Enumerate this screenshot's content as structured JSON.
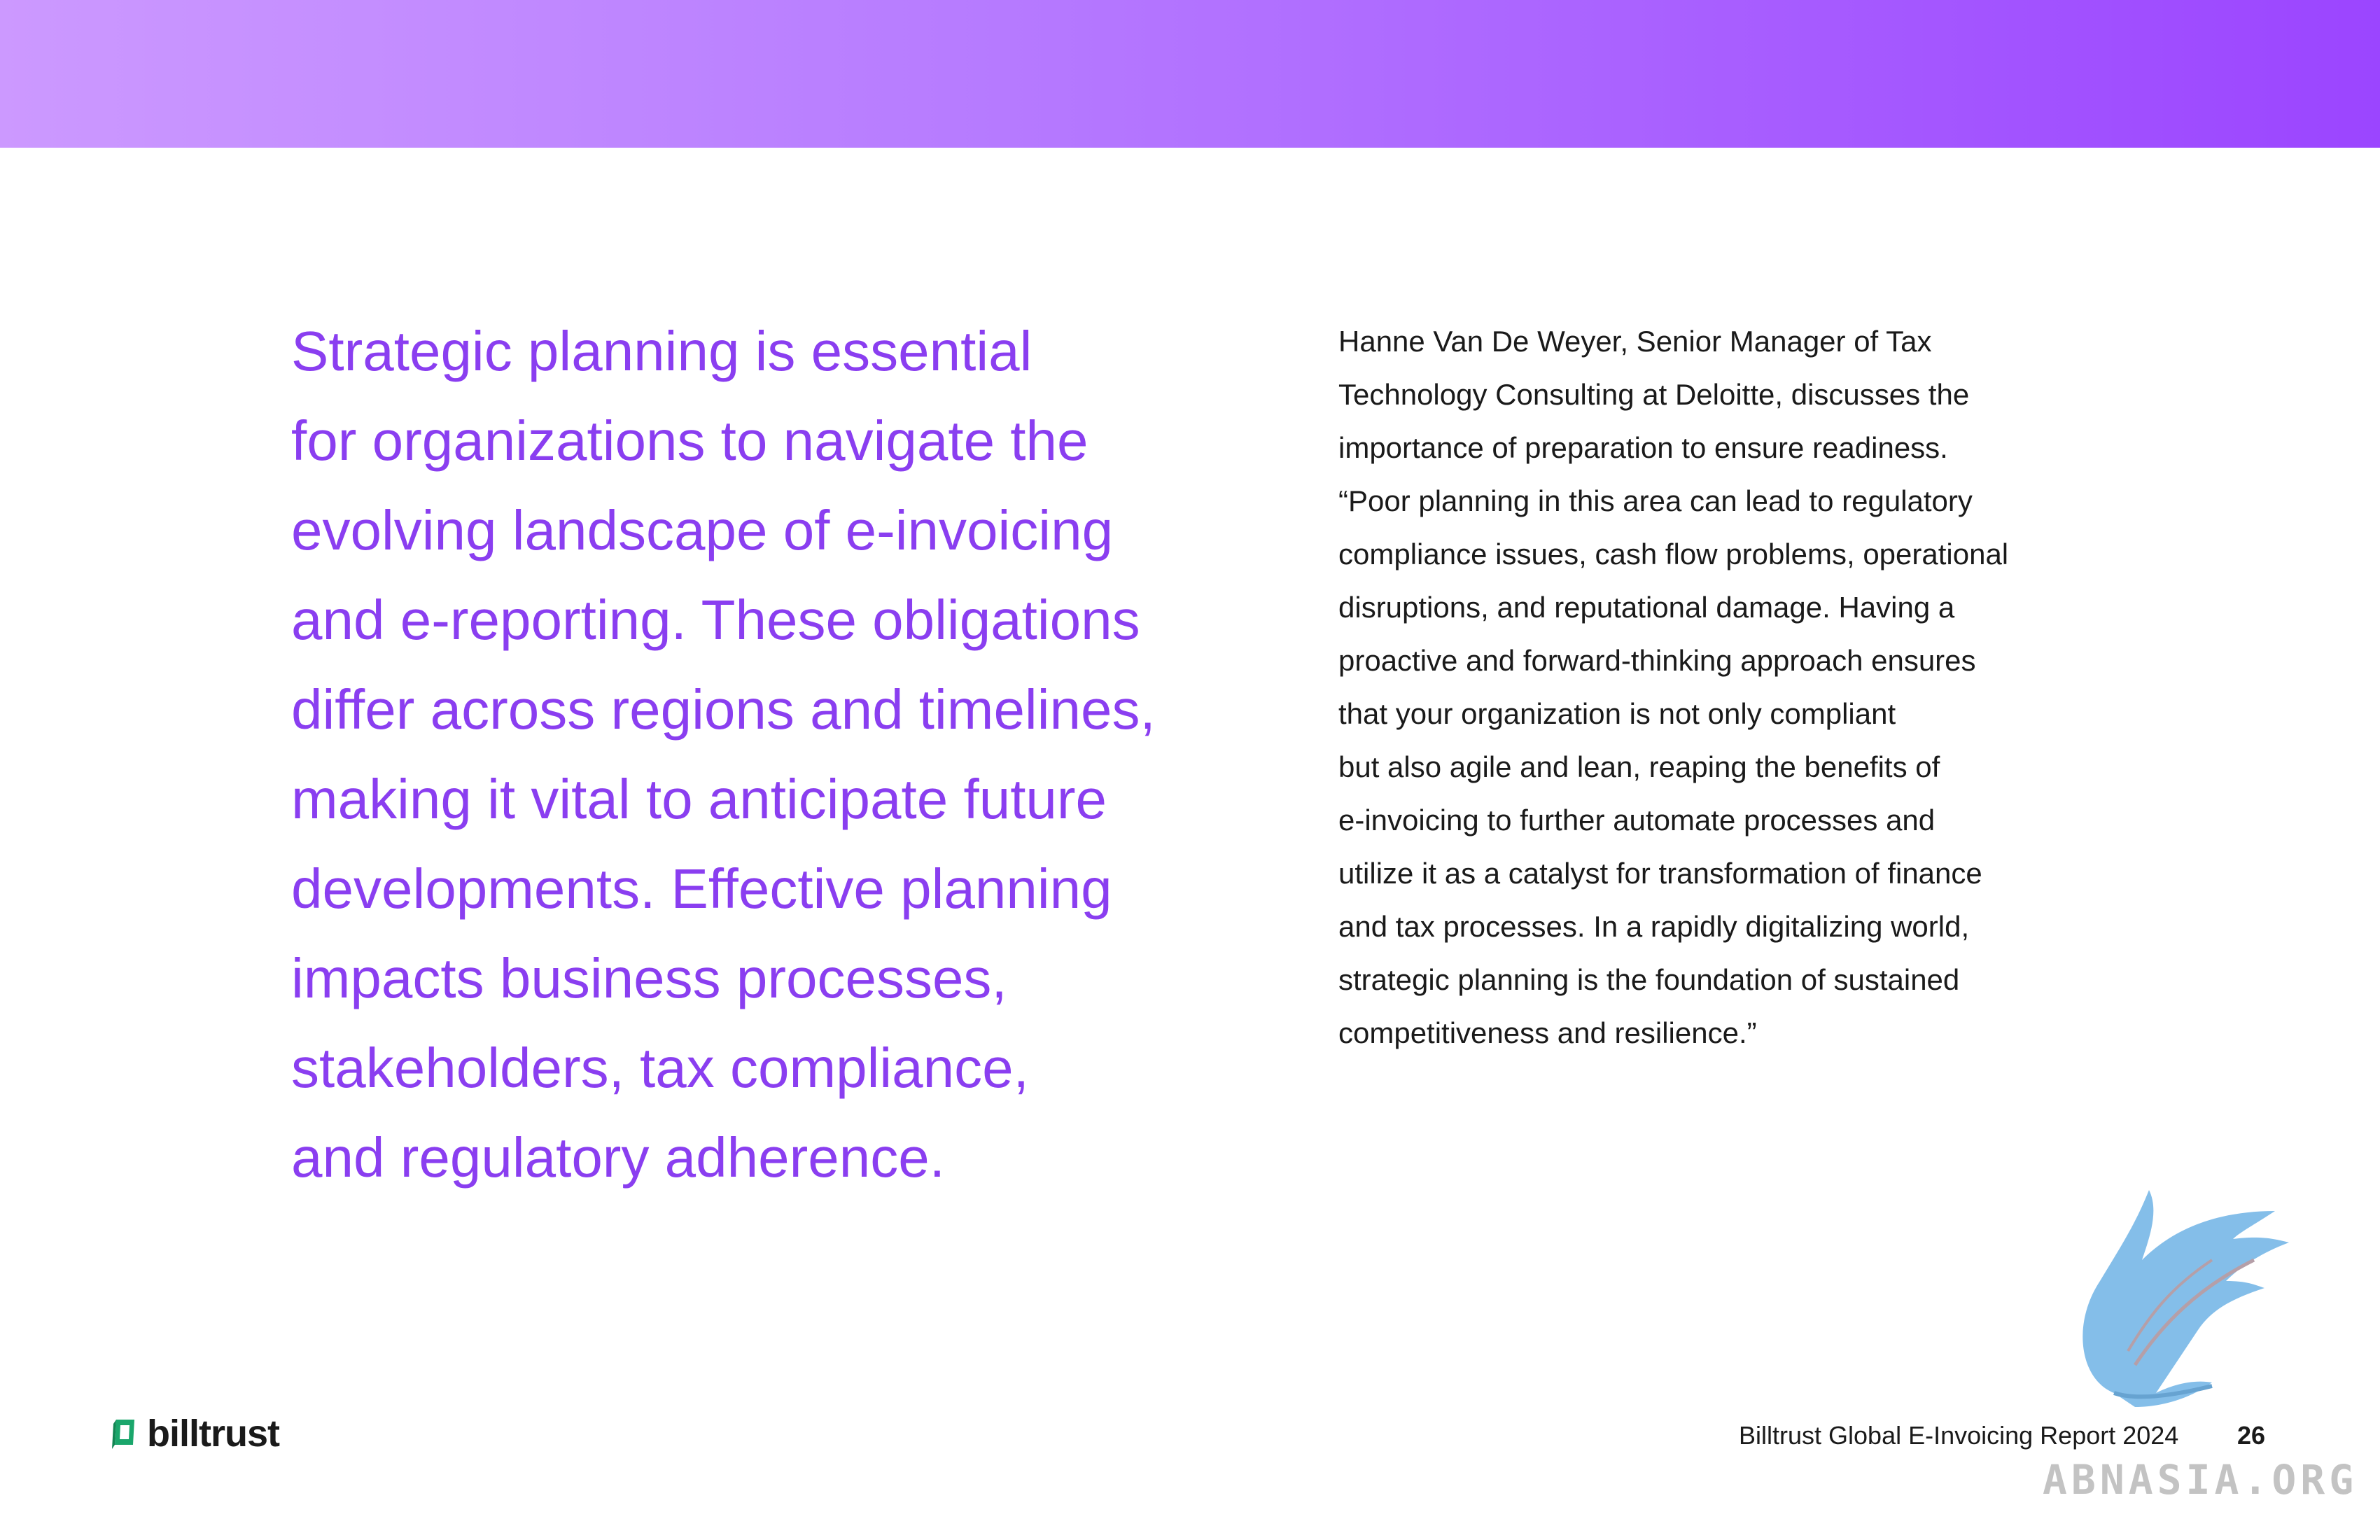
{
  "headline": {
    "lines": [
      "Strategic planning is essential",
      "for organizations to navigate the",
      "evolving landscape of e-invoicing",
      "and e-reporting. These obligations",
      "differ across regions and timelines,",
      "making it vital to anticipate future",
      "developments. Effective planning",
      "impacts business processes,",
      "stakeholders, tax compliance,",
      "and regulatory adherence."
    ]
  },
  "quote": {
    "lines": [
      "Hanne Van De Weyer, Senior Manager of Tax",
      "Technology Consulting at Deloitte, discusses the",
      "importance of preparation to ensure readiness.",
      "“Poor planning in this area can lead to regulatory",
      "compliance issues, cash flow problems, operational",
      "disruptions, and reputational damage. Having a",
      "proactive and forward-thinking approach ensures",
      "that your organization is not only compliant",
      "but also agile and lean, reaping the benefits of",
      "e-invoicing to further automate processes and",
      "utilize it as a catalyst for transformation of finance",
      "and tax processes. In a rapidly digitalizing world,",
      "strategic planning is the foundation of sustained",
      "competitiveness and resilience.”"
    ]
  },
  "footer": {
    "logo_text": "billtrust",
    "report_title": "Billtrust Global E-Invoicing Report 2024",
    "page_number": "26"
  },
  "watermark": {
    "text": "ABNASIA.ORG",
    "icon": "phoenix-icon"
  },
  "colors": {
    "headline": "#8a3ef0",
    "band_start": "#cc99ff",
    "band_end": "#9b45ff",
    "logo_mark": "#1aa66b",
    "watermark_bird": "#6fb3e6"
  }
}
